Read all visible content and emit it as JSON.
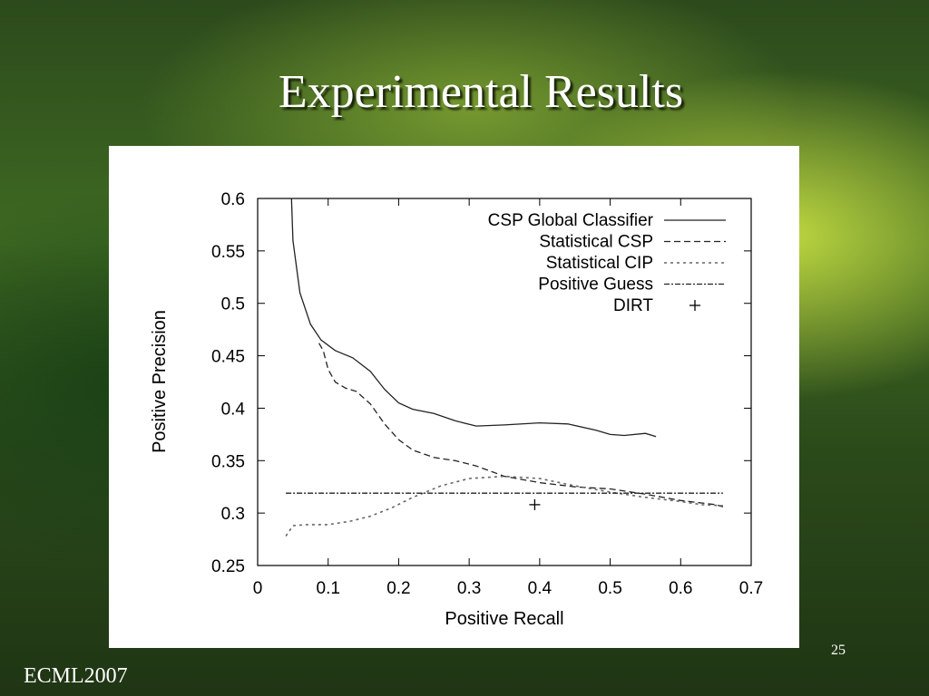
{
  "slide": {
    "title": "Experimental Results",
    "footer": "ECML2007",
    "slide_number": "25"
  },
  "chart_data": {
    "type": "line",
    "xlabel": "Positive Recall",
    "ylabel": "Positive Precision",
    "xlim": [
      0,
      0.7
    ],
    "ylim": [
      0.25,
      0.6
    ],
    "xticks": [
      "0",
      "0.1",
      "0.2",
      "0.3",
      "0.4",
      "0.5",
      "0.6",
      "0.7"
    ],
    "yticks": [
      "0.25",
      "0.3",
      "0.35",
      "0.4",
      "0.45",
      "0.5",
      "0.55",
      "0.6"
    ],
    "legend_position": "top-right",
    "series": [
      {
        "name": "CSP Global Classifier",
        "style": "solid",
        "points": [
          [
            0.048,
            0.6
          ],
          [
            0.05,
            0.56
          ],
          [
            0.06,
            0.51
          ],
          [
            0.075,
            0.48
          ],
          [
            0.09,
            0.465
          ],
          [
            0.11,
            0.455
          ],
          [
            0.135,
            0.448
          ],
          [
            0.16,
            0.435
          ],
          [
            0.18,
            0.418
          ],
          [
            0.2,
            0.405
          ],
          [
            0.22,
            0.399
          ],
          [
            0.25,
            0.395
          ],
          [
            0.28,
            0.388
          ],
          [
            0.31,
            0.383
          ],
          [
            0.35,
            0.384
          ],
          [
            0.4,
            0.386
          ],
          [
            0.44,
            0.385
          ],
          [
            0.48,
            0.379
          ],
          [
            0.5,
            0.375
          ],
          [
            0.52,
            0.374
          ],
          [
            0.55,
            0.376
          ],
          [
            0.565,
            0.373
          ]
        ]
      },
      {
        "name": "Statistical CSP",
        "style": "dashed",
        "points": [
          [
            0.087,
            0.462
          ],
          [
            0.093,
            0.455
          ],
          [
            0.1,
            0.437
          ],
          [
            0.11,
            0.425
          ],
          [
            0.125,
            0.419
          ],
          [
            0.14,
            0.416
          ],
          [
            0.16,
            0.404
          ],
          [
            0.18,
            0.385
          ],
          [
            0.2,
            0.37
          ],
          [
            0.22,
            0.36
          ],
          [
            0.25,
            0.353
          ],
          [
            0.28,
            0.35
          ],
          [
            0.31,
            0.345
          ],
          [
            0.35,
            0.335
          ],
          [
            0.4,
            0.329
          ],
          [
            0.45,
            0.325
          ],
          [
            0.5,
            0.323
          ],
          [
            0.55,
            0.318
          ],
          [
            0.6,
            0.312
          ],
          [
            0.65,
            0.308
          ],
          [
            0.66,
            0.306
          ]
        ]
      },
      {
        "name": "Statistical CIP",
        "style": "dotted",
        "points": [
          [
            0.04,
            0.278
          ],
          [
            0.045,
            0.283
          ],
          [
            0.05,
            0.288
          ],
          [
            0.07,
            0.289
          ],
          [
            0.1,
            0.289
          ],
          [
            0.13,
            0.292
          ],
          [
            0.16,
            0.297
          ],
          [
            0.19,
            0.305
          ],
          [
            0.22,
            0.315
          ],
          [
            0.26,
            0.326
          ],
          [
            0.3,
            0.333
          ],
          [
            0.35,
            0.335
          ],
          [
            0.4,
            0.333
          ],
          [
            0.45,
            0.326
          ],
          [
            0.5,
            0.32
          ],
          [
            0.55,
            0.315
          ],
          [
            0.6,
            0.311
          ],
          [
            0.63,
            0.308
          ],
          [
            0.66,
            0.307
          ]
        ]
      },
      {
        "name": "Positive Guess",
        "style": "dashdot",
        "points": [
          [
            0.04,
            0.319
          ],
          [
            0.66,
            0.319
          ]
        ]
      },
      {
        "name": "DIRT",
        "style": "marker",
        "points": [
          [
            0.393,
            0.308
          ]
        ]
      }
    ]
  }
}
